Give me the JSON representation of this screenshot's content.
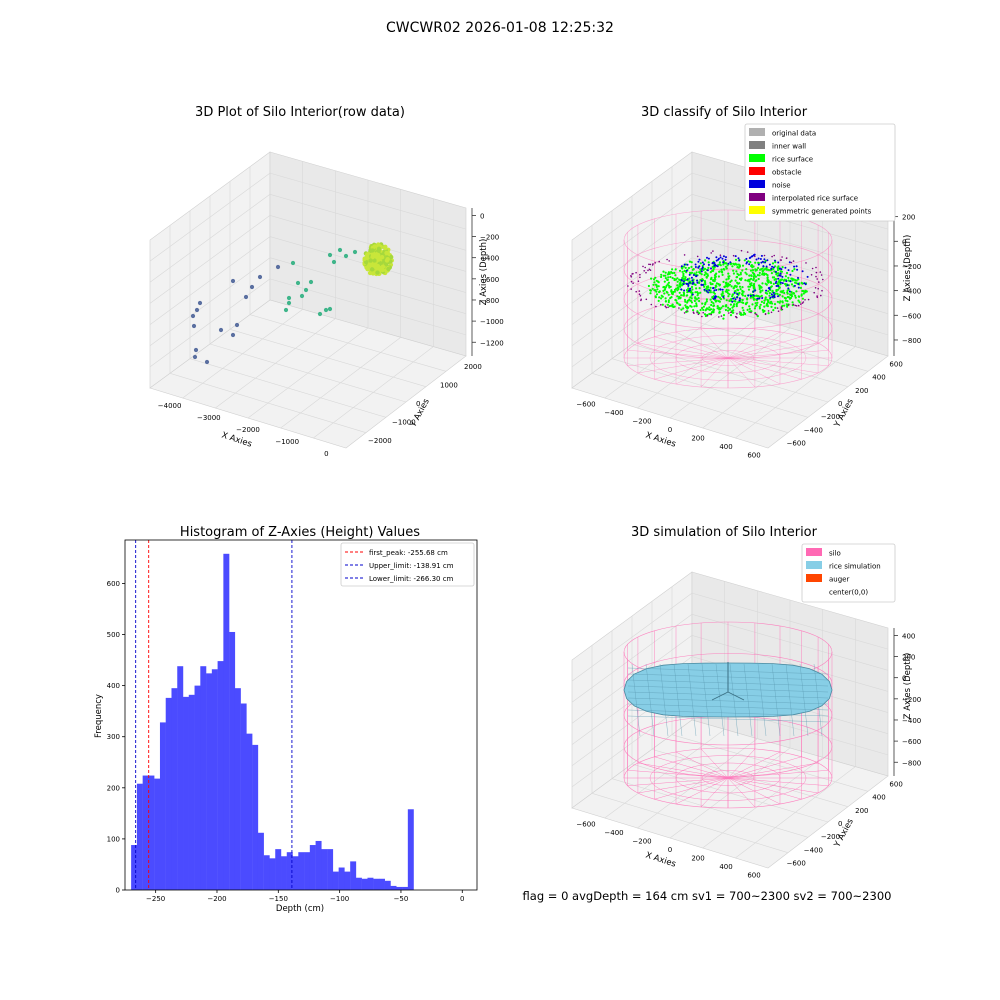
{
  "figure": {
    "suptitle": "CWCWR02 2026-01-08 12:25:32",
    "status_text": "flag = 0     avgDepth = 164 cm  sv1 = 700~2300  sv2 = 700~2300"
  },
  "chart_data": [
    {
      "type": "scatter",
      "title": "3D Plot of Silo Interior(row data)",
      "xlabel": "X Axies",
      "ylabel": "Y Axies",
      "zlabel": "Z Axies (Depth)",
      "x_ticks": [
        "−4000",
        "−3000",
        "−2000",
        "−1000",
        "0"
      ],
      "y_ticks": [
        "−2000",
        "−1000",
        "0",
        "1000",
        "2000"
      ],
      "z_ticks": [
        "0",
        "−200",
        "−400",
        "−600",
        "−800",
        "−1000",
        "−1200"
      ],
      "colors": {
        "far": "#5a6fa0",
        "mid": "#3fb58a",
        "near": "#c8e63a"
      }
    },
    {
      "type": "scatter",
      "title": "3D classify of Silo Interior",
      "zlabel": "Z Axies (Depth)",
      "xlabel": "X Axies",
      "ylabel": "Y Axies",
      "x_ticks": [
        "−600",
        "−400",
        "−200",
        "0",
        "200",
        "400",
        "600"
      ],
      "y_ticks": [
        "−600",
        "−400",
        "−200",
        "0",
        "200",
        "400",
        "600"
      ],
      "z_ticks": [
        "200",
        "0",
        "−200",
        "−400",
        "−600",
        "−800"
      ],
      "legend": [
        {
          "label": "original data",
          "color": "#b0b0b0"
        },
        {
          "label": "inner wall",
          "color": "#808080"
        },
        {
          "label": "rice surface",
          "color": "#00ff00"
        },
        {
          "label": "obstacle",
          "color": "#ff0000"
        },
        {
          "label": "noise",
          "color": "#0000dd"
        },
        {
          "label": "interpolated rice surface",
          "color": "#800080"
        },
        {
          "label": "symmetric generated points",
          "color": "#ffff00"
        }
      ],
      "silo_color": "#ff69b4"
    },
    {
      "type": "bar",
      "title": "Histogram of Z-Axies (Height) Values",
      "xlabel": "Depth (cm)",
      "ylabel": "Frequency",
      "xlim": [
        -275,
        12
      ],
      "ylim": [
        0,
        685
      ],
      "x_ticks": [
        -250,
        -200,
        -150,
        -100,
        -50,
        0
      ],
      "y_ticks": [
        0,
        100,
        200,
        300,
        400,
        500,
        600
      ],
      "bar_color": "#4b4bff",
      "bin_width": 4.7,
      "bin_start": -270.0,
      "values": [
        88,
        208,
        224,
        224,
        218,
        328,
        376,
        395,
        438,
        378,
        382,
        400,
        438,
        424,
        432,
        448,
        658,
        505,
        395,
        365,
        306,
        284,
        112,
        68,
        62,
        80,
        66,
        74,
        66,
        74,
        74,
        88,
        96,
        80,
        80,
        36,
        44,
        36,
        56,
        24,
        22,
        24,
        22,
        22,
        18,
        8,
        6,
        6,
        158
      ],
      "lines": [
        {
          "label": "first_peak: -255.68 cm",
          "x": -255.68,
          "color": "#ff0000"
        },
        {
          "label": "Upper_limit: -138.91 cm",
          "x": -138.91,
          "color": "#0000cc"
        },
        {
          "label": "Lower_limit: -266.30 cm",
          "x": -266.3,
          "color": "#0000cc"
        }
      ]
    },
    {
      "type": "scatter",
      "title": "3D simulation of Silo Interior",
      "zlabel": "Z Axies (Depth)",
      "xlabel": "X Axies",
      "ylabel": "Y Axies",
      "x_ticks": [
        "−600",
        "−400",
        "−200",
        "0",
        "200",
        "400",
        "600"
      ],
      "y_ticks": [
        "−600",
        "−400",
        "−200",
        "0",
        "200",
        "400",
        "600"
      ],
      "z_ticks": [
        "400",
        "200",
        "0",
        "−200",
        "−400",
        "−600",
        "−800"
      ],
      "legend": [
        {
          "label": "silo",
          "color": "#ff69b4"
        },
        {
          "label": "rice simulation",
          "color": "#87cee6"
        },
        {
          "label": "auger",
          "color": "#ff4500"
        },
        {
          "label": "center(0,0)",
          "color": "#ffffff"
        }
      ]
    }
  ]
}
